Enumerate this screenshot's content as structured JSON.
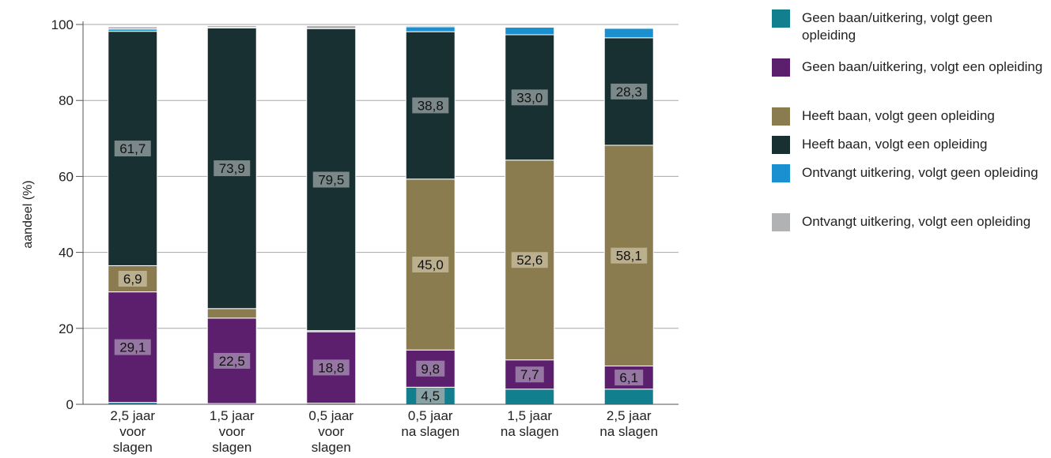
{
  "chart_data": {
    "type": "bar",
    "stacked": true,
    "ylabel": "aandeel (%)",
    "ylim": [
      0,
      100
    ],
    "yticks": [
      0,
      20,
      40,
      60,
      80,
      100
    ],
    "grid": true,
    "legend_position": "right",
    "categories": [
      [
        "2,5 jaar",
        "voor",
        "slagen"
      ],
      [
        "1,5 jaar",
        "voor",
        "slagen"
      ],
      [
        "0,5 jaar",
        "voor",
        "slagen"
      ],
      [
        "0,5 jaar",
        "na slagen"
      ],
      [
        "1,5 jaar",
        "na slagen"
      ],
      [
        "2,5 jaar",
        "na slagen"
      ]
    ],
    "series": [
      {
        "name": "Geen baan/uitkering, volgt geen opleiding",
        "color": "#127f8f",
        "values": [
          0.5,
          0.2,
          0.3,
          4.5,
          4.0,
          4.0
        ],
        "labels": [
          null,
          null,
          null,
          "4,5",
          null,
          null
        ]
      },
      {
        "name": "Geen baan/uitkering, volgt een opleiding",
        "color": "#5b1f6e",
        "values": [
          29.1,
          22.5,
          18.8,
          9.8,
          7.7,
          6.1
        ],
        "labels": [
          "29,1",
          "22,5",
          "18,8",
          "9,8",
          "7,7",
          "6,1"
        ]
      },
      {
        "name": "Heeft baan, volgt geen opleiding",
        "color": "#8a7c4f",
        "values": [
          6.9,
          2.5,
          0.3,
          45.0,
          52.6,
          58.1
        ],
        "labels": [
          "6,9",
          null,
          null,
          "45,0",
          "52,6",
          "58,1"
        ]
      },
      {
        "name": "Heeft baan, volgt een opleiding",
        "color": "#183031",
        "values": [
          61.7,
          73.9,
          79.5,
          38.8,
          33.0,
          28.3
        ],
        "labels": [
          "61,7",
          "73,9",
          "79,5",
          "38,8",
          "33,0",
          "28,3"
        ]
      },
      {
        "name": "Ontvangt uitkering, volgt geen opleiding",
        "color": "#1a90d0",
        "values": [
          0.6,
          0.1,
          0.0,
          1.3,
          2.0,
          2.5
        ],
        "labels": [
          null,
          null,
          null,
          null,
          null,
          null
        ]
      },
      {
        "name": "Ontvangt uitkering, volgt een opleiding",
        "color": "#b0b2b4",
        "values": [
          0.6,
          0.5,
          0.8,
          0.3,
          0.2,
          0.1
        ],
        "labels": [
          null,
          null,
          null,
          null,
          null,
          null
        ]
      }
    ]
  }
}
